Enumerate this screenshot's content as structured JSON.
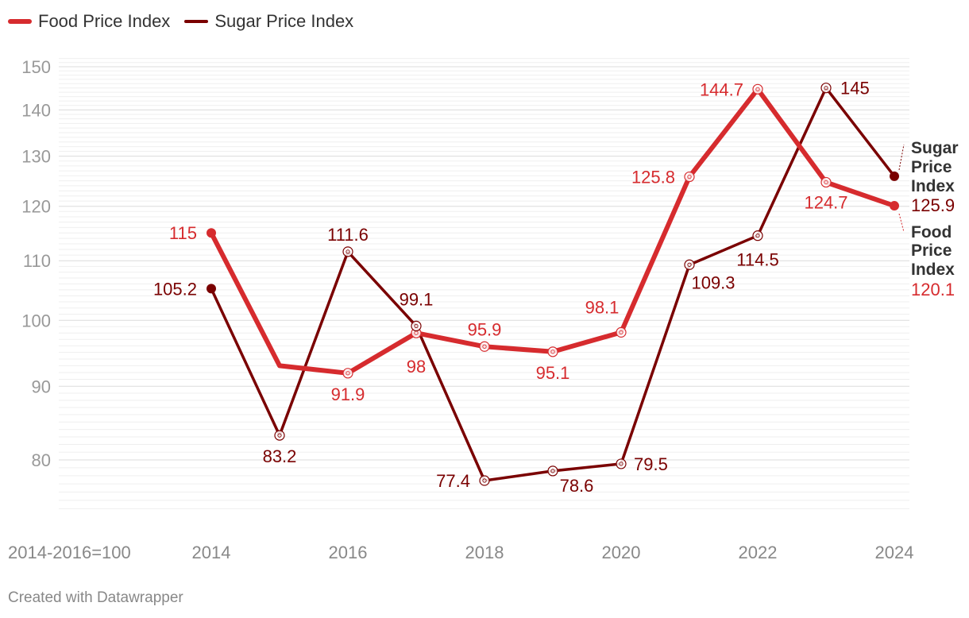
{
  "legend": [
    {
      "label": "Food Price Index",
      "color": "#d62b2e"
    },
    {
      "label": "Sugar Price Index",
      "color": "#7a0000"
    }
  ],
  "footer": "Created with Datawrapper",
  "chart_data": {
    "type": "line",
    "title": "",
    "xlabel": "2014-2016=100",
    "ylabel": "",
    "yscale": "log",
    "ylim": [
      72,
      152
    ],
    "xlim": [
      2014,
      2024
    ],
    "yticks": [
      80,
      90,
      100,
      110,
      120,
      130,
      140,
      150
    ],
    "xticks": [
      2014,
      2016,
      2018,
      2020,
      2022,
      2024
    ],
    "x": [
      2014,
      2015,
      2016,
      2017,
      2018,
      2019,
      2020,
      2021,
      2022,
      2023,
      2024
    ],
    "series": [
      {
        "name": "Food Price Index",
        "color": "#d62b2e",
        "values": [
          115,
          93,
          91.9,
          98,
          95.9,
          95.1,
          98.1,
          125.8,
          144.7,
          124.7,
          120.1
        ],
        "labels": [
          "115",
          "",
          "91.9",
          "98",
          "95.9",
          "95.1",
          "98.1",
          "125.8",
          "144.7",
          "124.7",
          ""
        ],
        "end_label": [
          "Food",
          "Price",
          "Index"
        ],
        "end_value": "120.1"
      },
      {
        "name": "Sugar Price Index",
        "color": "#7a0000",
        "values": [
          105.2,
          83.2,
          111.6,
          99.1,
          77.4,
          78.6,
          79.5,
          109.3,
          114.5,
          145,
          125.9
        ],
        "labels": [
          "105.2",
          "83.2",
          "111.6",
          "99.1",
          "77.4",
          "78.6",
          "79.5",
          "109.3",
          "114.5",
          "145",
          ""
        ],
        "end_label": [
          "Sugar",
          "Price",
          "Index"
        ],
        "end_value": "125.9"
      }
    ]
  }
}
